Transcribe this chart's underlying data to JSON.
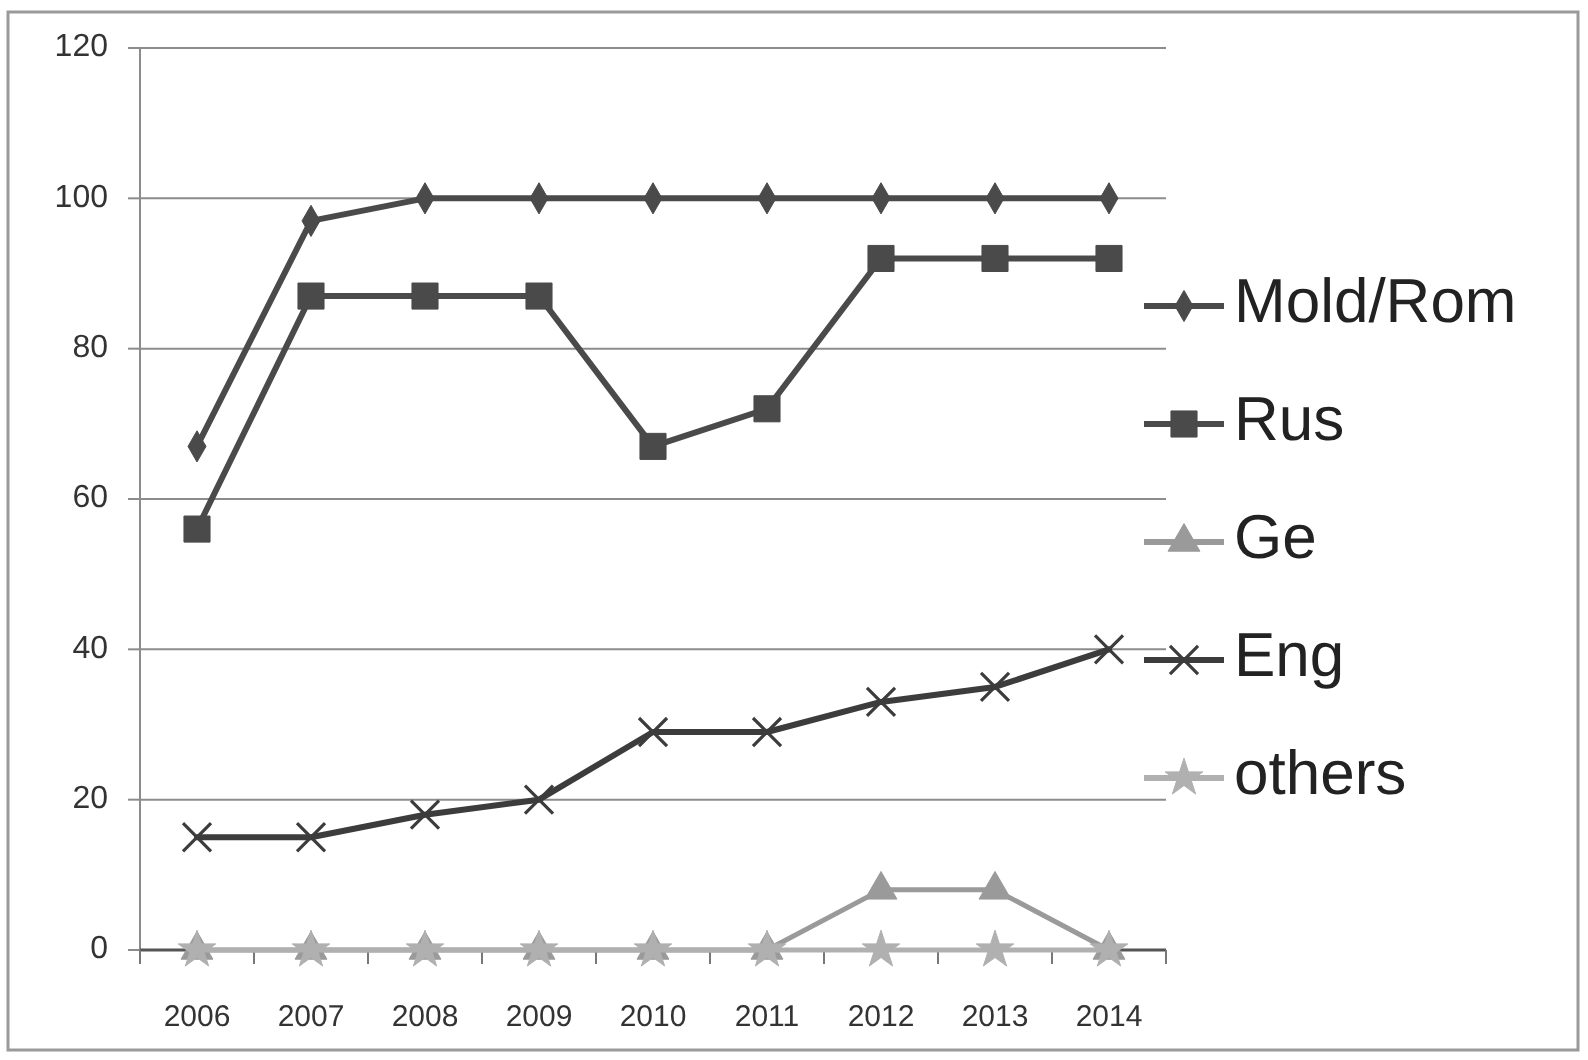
{
  "chart_data": {
    "type": "line",
    "categories": [
      "2006",
      "2007",
      "2008",
      "2009",
      "2010",
      "2011",
      "2012",
      "2013",
      "2014"
    ],
    "series": [
      {
        "name": "Mold/Rom",
        "color": "#4a4a4a",
        "marker": "diamond",
        "values": [
          67,
          97,
          100,
          100,
          100,
          100,
          100,
          100,
          100
        ]
      },
      {
        "name": "Rus",
        "color": "#4a4a4a",
        "marker": "square",
        "values": [
          56,
          87,
          87,
          87,
          67,
          72,
          92,
          92,
          92
        ]
      },
      {
        "name": "Ge",
        "color": "#9a9a9a",
        "marker": "triangle",
        "values": [
          0,
          0,
          0,
          0,
          0,
          0,
          8,
          8,
          0
        ]
      },
      {
        "name": "Eng",
        "color": "#3c3c3c",
        "marker": "cross",
        "values": [
          15,
          15,
          18,
          20,
          29,
          29,
          33,
          35,
          40
        ]
      },
      {
        "name": "others",
        "color": "#b0b0b0",
        "marker": "star",
        "values": [
          0,
          0,
          0,
          0,
          0,
          0,
          0,
          0,
          0
        ]
      }
    ],
    "ylim": [
      0,
      120
    ],
    "yticks": [
      0,
      20,
      40,
      60,
      80,
      100,
      120
    ],
    "grid": "y",
    "legend": "right"
  }
}
